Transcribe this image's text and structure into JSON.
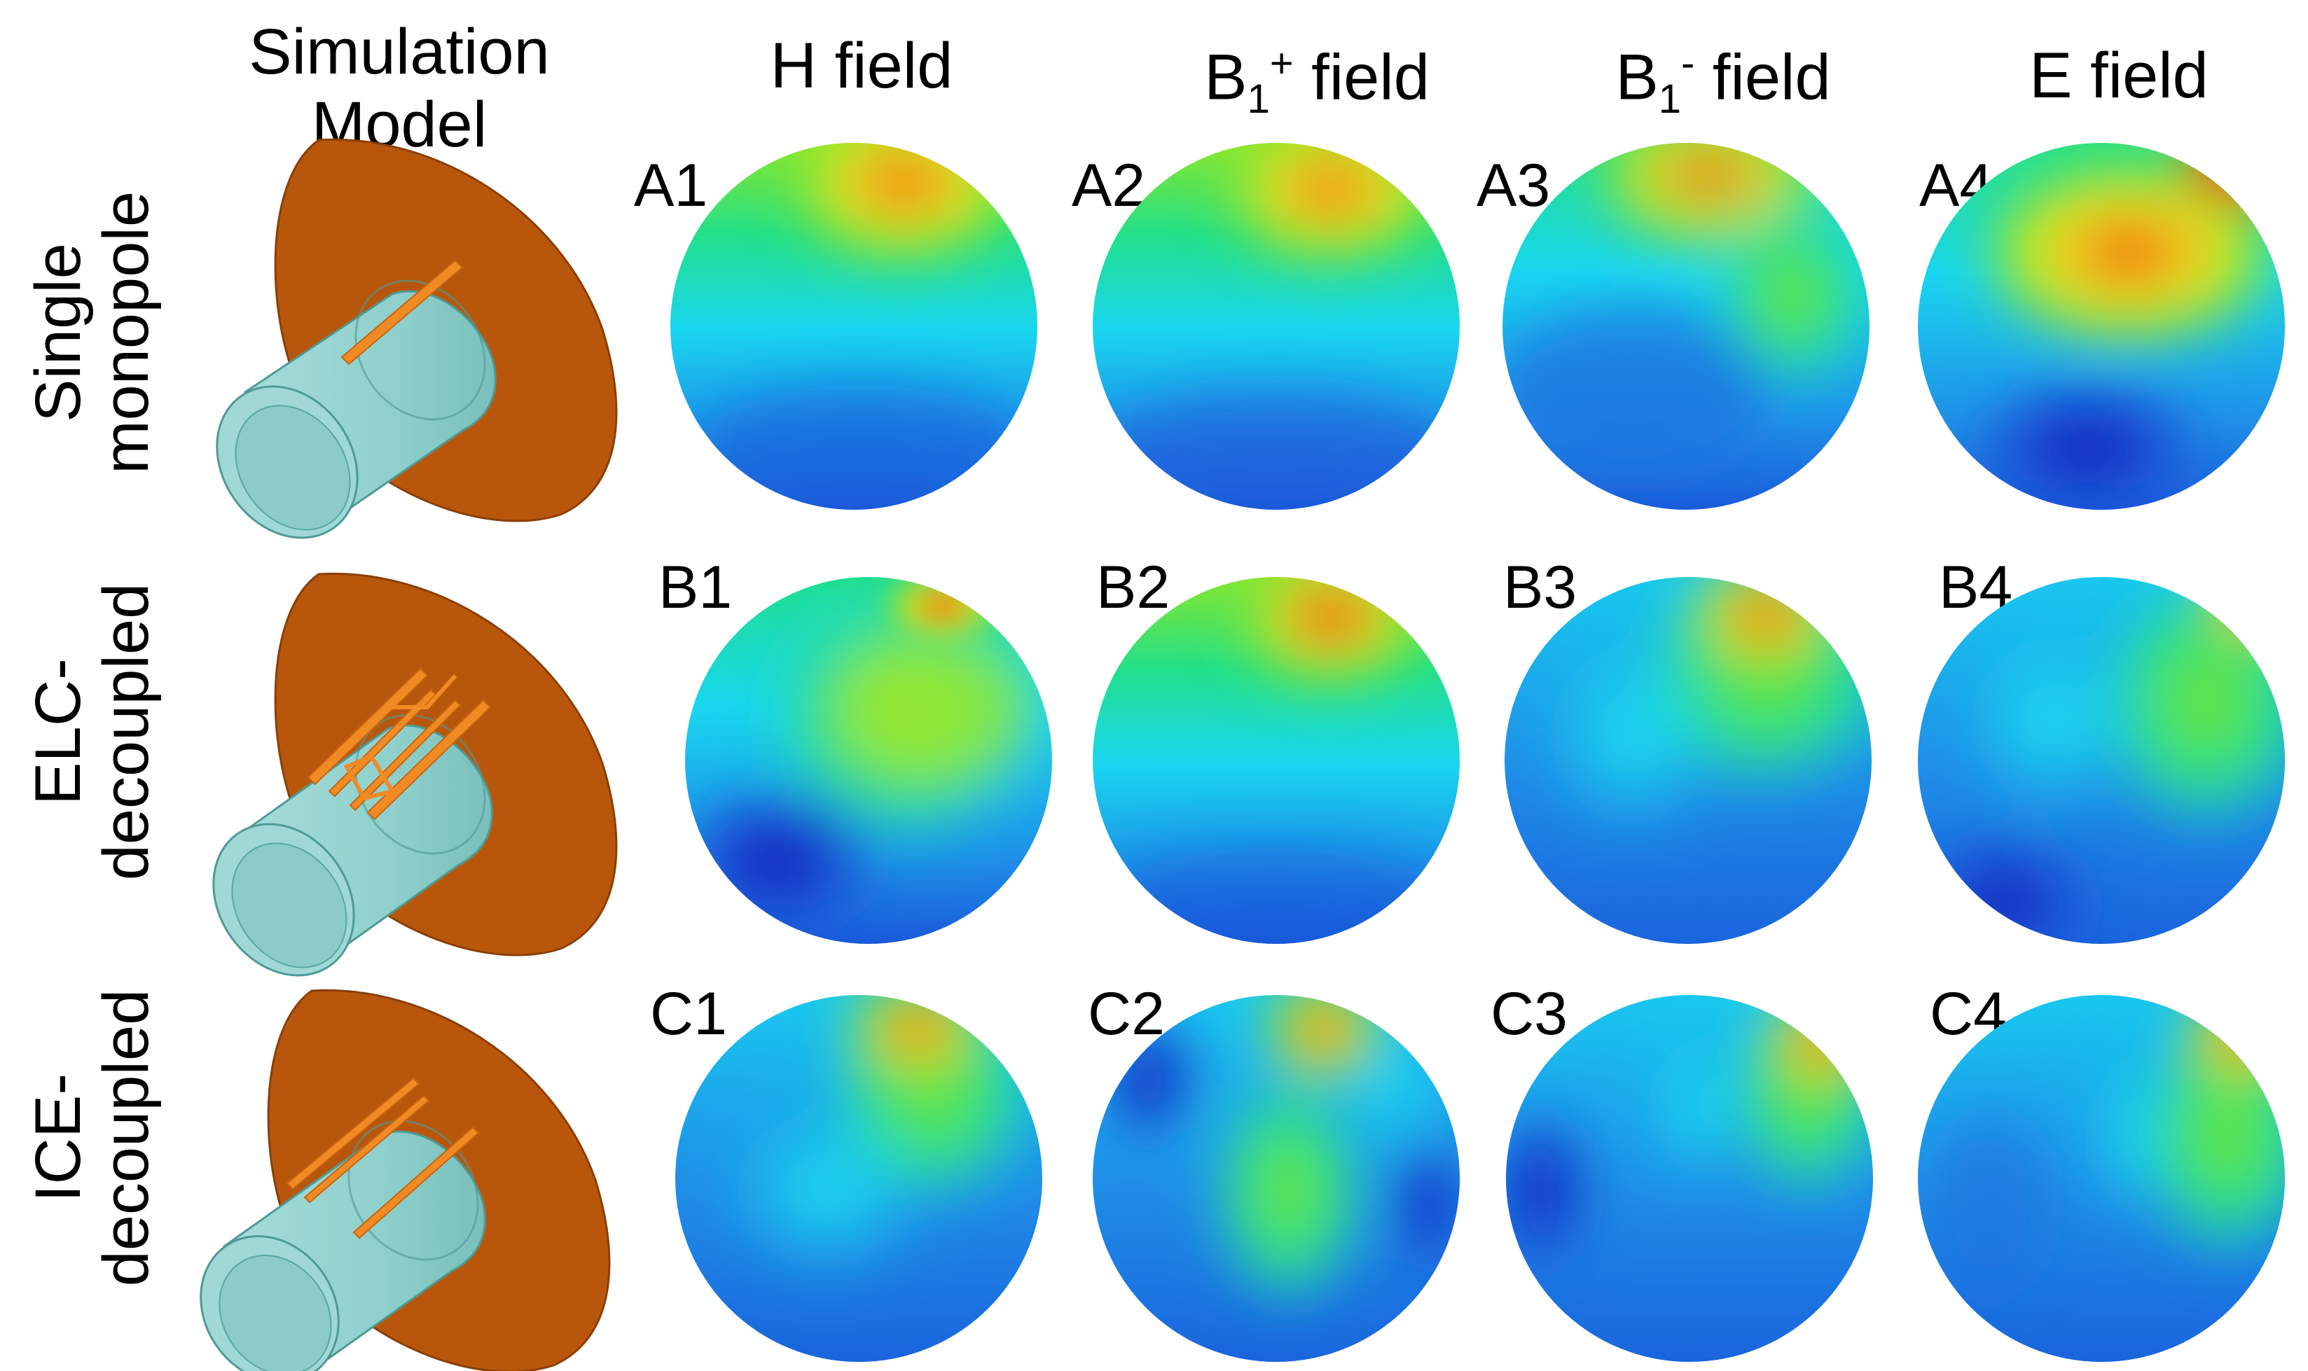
{
  "header": {
    "simulation_model_line1": "Simulation",
    "simulation_model_line2": "Model",
    "h_field": "H field",
    "b1p_main": "B",
    "b1p_sub": "1",
    "b1p_sup": "+",
    "b1p_rest": " field",
    "b1m_main": "B",
    "b1m_sub": "1",
    "b1m_sup": "-",
    "b1m_rest": " field",
    "e_field": "E field"
  },
  "rows": [
    {
      "line1": "Single",
      "line2": "monopole"
    },
    {
      "line1": "ELC-",
      "line2": "decoupled"
    },
    {
      "line1": "ICE-",
      "line2": "decoupled"
    }
  ],
  "panel_labels": [
    [
      "A1",
      "A2",
      "A3",
      "A4"
    ],
    [
      "B1",
      "B2",
      "B3",
      "B4"
    ],
    [
      "C1",
      "C2",
      "C3",
      "C4"
    ]
  ],
  "colors": {
    "plate": "#b8570c",
    "plate_edge": "#8a3f07",
    "phantom": "#8fd0cc",
    "phantom_edge": "#4f9a96",
    "coil": "#f08a24",
    "colormap": [
      "#0b1fb4",
      "#1f6fe0",
      "#19d6f0",
      "#22e08a",
      "#49e62a",
      "#e9e825",
      "#f39a12",
      "#e8200c"
    ]
  }
}
